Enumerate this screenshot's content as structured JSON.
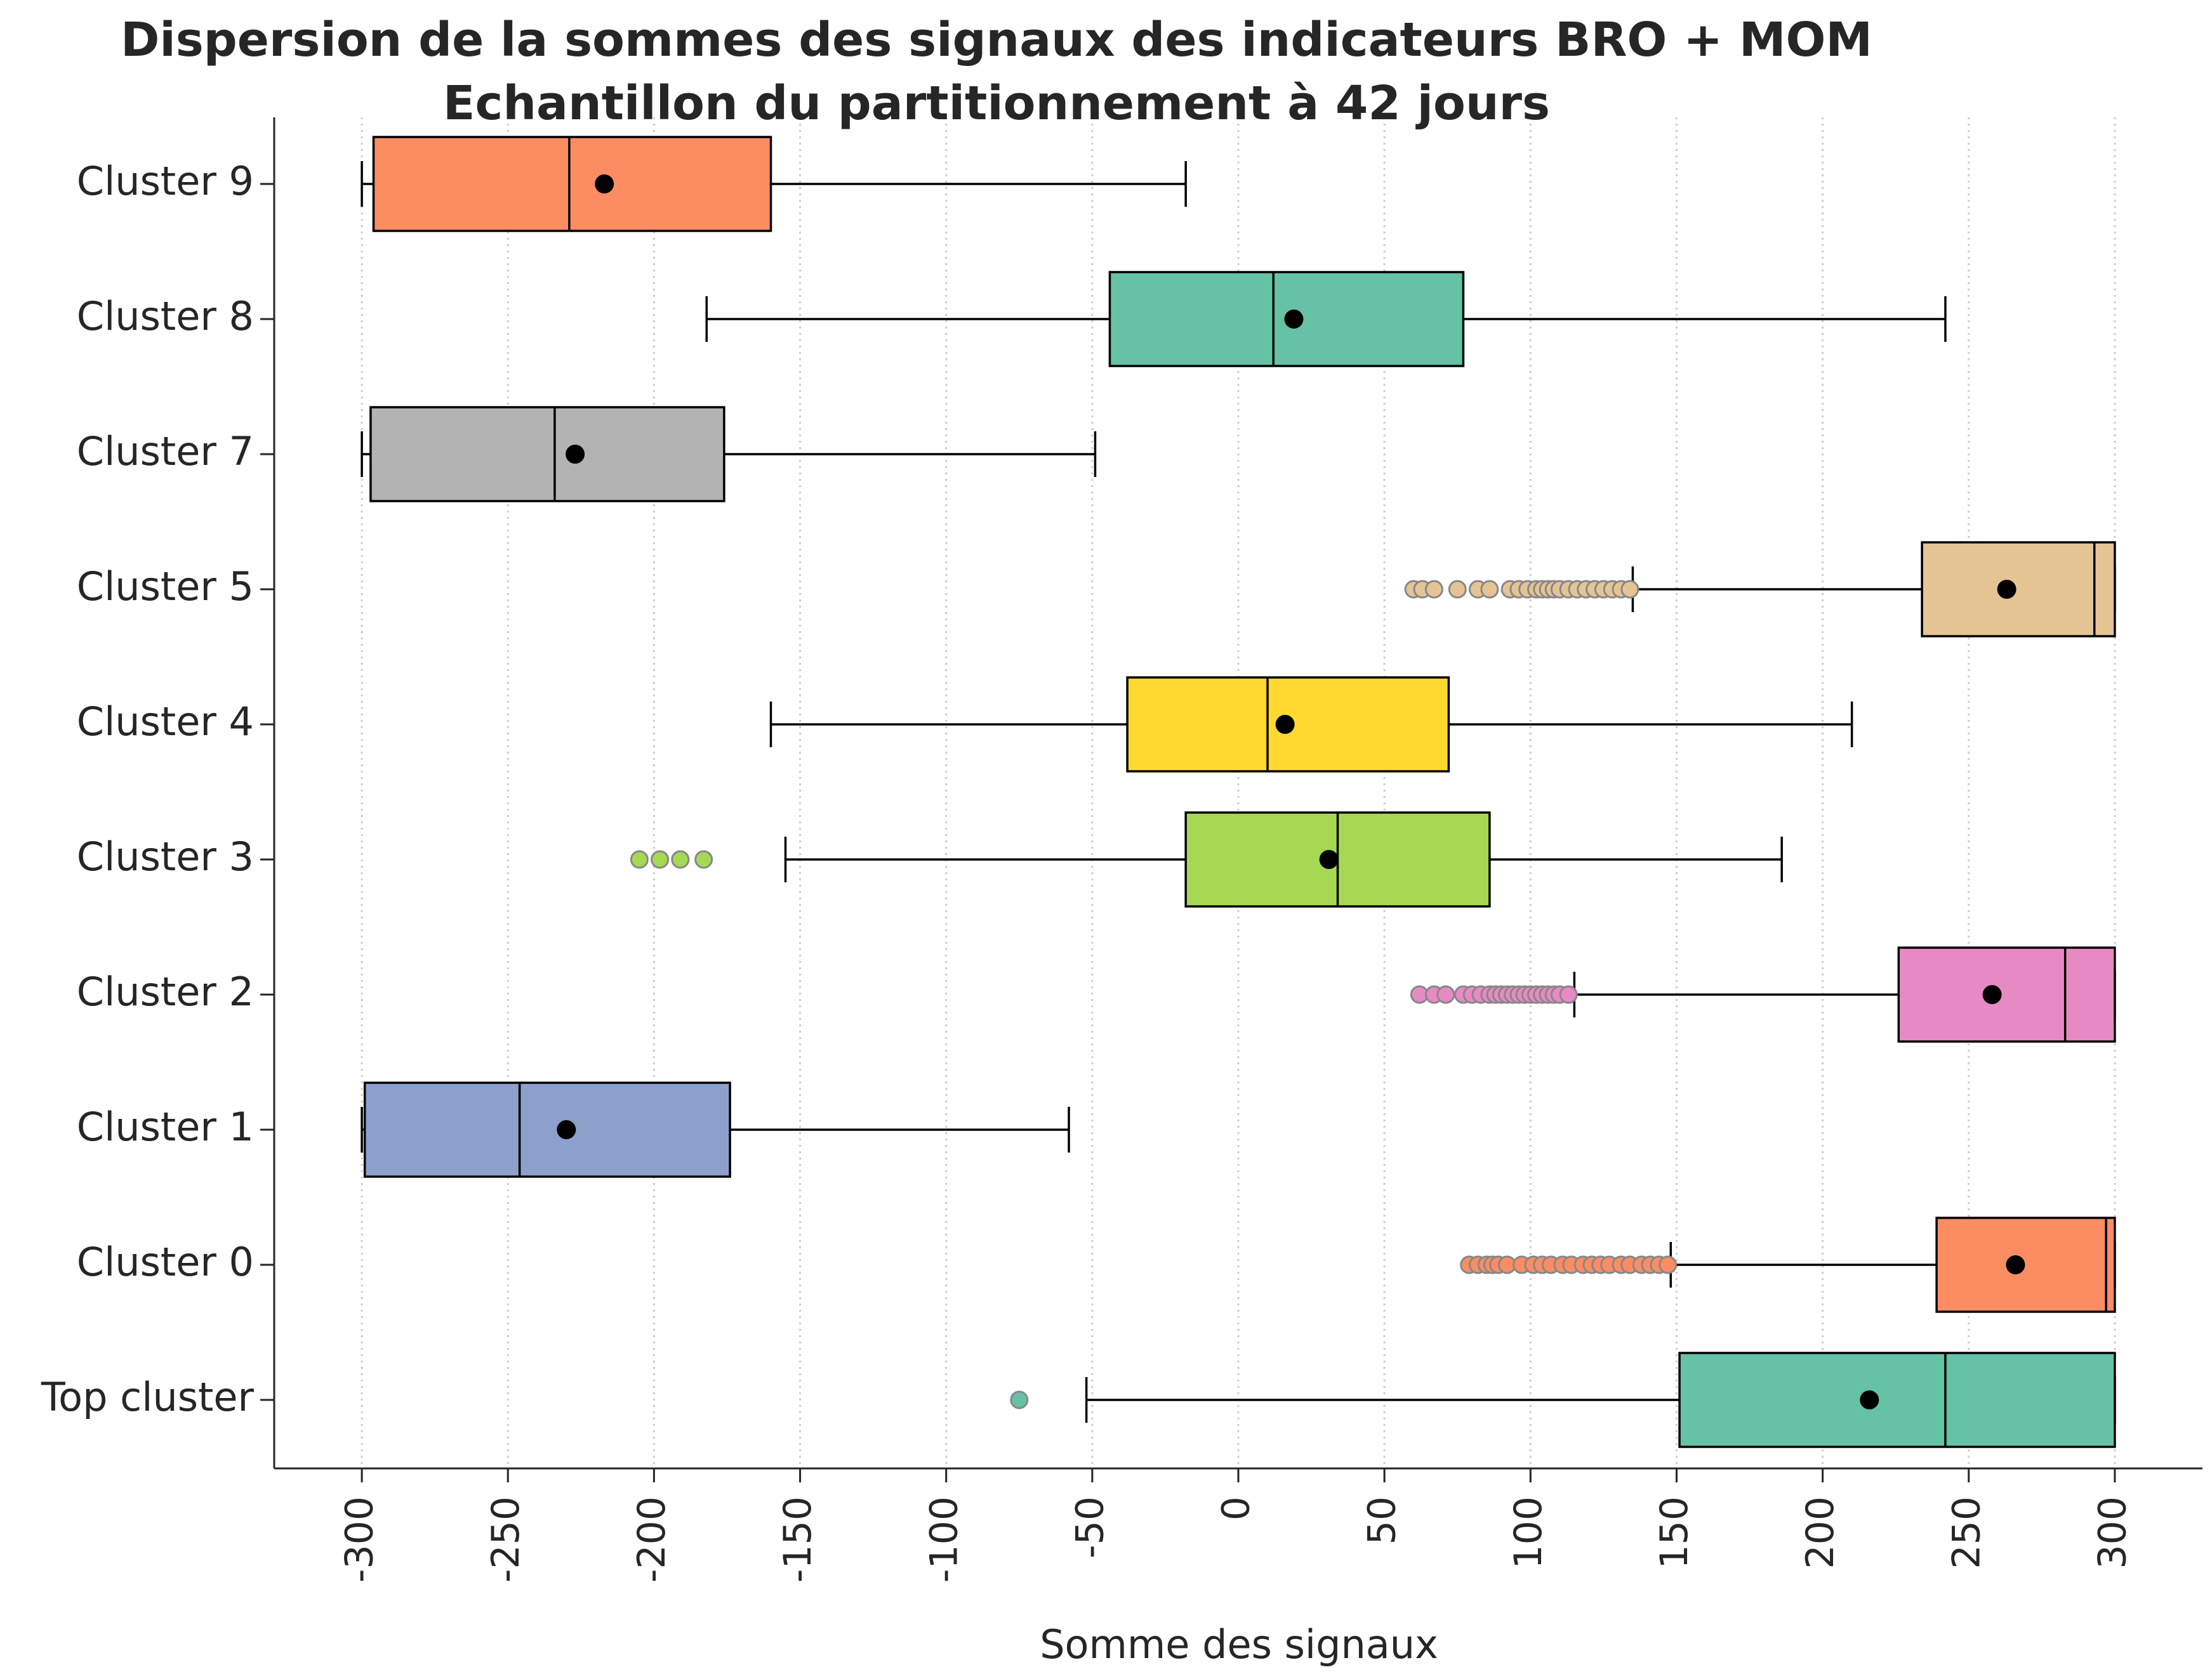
{
  "chart_data": {
    "type": "box",
    "orientation": "horizontal",
    "title_lines": [
      "Dispersion de la sommes des signaux des indicateurs BRO + MOM",
      "Echantillon du partitionnement à 42 jours"
    ],
    "xlabel": "Somme des signaux",
    "ylabel": "",
    "xlim": [
      -330,
      330
    ],
    "xticks": [
      -300,
      -250,
      -200,
      -150,
      -100,
      -50,
      0,
      50,
      100,
      150,
      200,
      250,
      300
    ],
    "grid": "vertical-dotted",
    "mean_marker_color": "#000000",
    "series": [
      {
        "category": "Cluster 9",
        "color": "#fc8d62",
        "whisker_low": -300,
        "q1": -296,
        "median": -229,
        "q3": -160,
        "whisker_high": -18,
        "mean": -217,
        "outliers": []
      },
      {
        "category": "Cluster 8",
        "color": "#66c2a5",
        "whisker_low": -182,
        "q1": -44,
        "median": 12,
        "q3": 77,
        "whisker_high": 242,
        "mean": 19,
        "outliers": []
      },
      {
        "category": "Cluster 7",
        "color": "#b3b3b3",
        "whisker_low": -300,
        "q1": -297,
        "median": -234,
        "q3": -176,
        "whisker_high": -49,
        "mean": -227,
        "outliers": []
      },
      {
        "category": "Cluster 5",
        "color": "#e5c494",
        "whisker_low": 135,
        "q1": 234,
        "median": 293,
        "q3": 300,
        "whisker_high": 300,
        "mean": 263,
        "outliers": [
          60,
          63,
          67,
          75,
          82,
          86,
          93,
          96,
          99,
          102,
          104,
          106,
          108,
          110,
          113,
          116,
          119,
          122,
          125,
          128,
          131,
          134
        ]
      },
      {
        "category": "Cluster 4",
        "color": "#ffd92f",
        "whisker_low": -160,
        "q1": -38,
        "median": 10,
        "q3": 72,
        "whisker_high": 210,
        "mean": 16,
        "outliers": []
      },
      {
        "category": "Cluster 3",
        "color": "#a6d854",
        "whisker_low": -155,
        "q1": -18,
        "median": 34,
        "q3": 86,
        "whisker_high": 186,
        "mean": 31,
        "outliers": [
          -205,
          -198,
          -191,
          -183
        ]
      },
      {
        "category": "Cluster 2",
        "color": "#e78ac3",
        "whisker_low": 115,
        "q1": 226,
        "median": 283,
        "q3": 300,
        "whisker_high": 300,
        "mean": 258,
        "outliers": [
          62,
          67,
          71,
          77,
          80,
          83,
          86,
          88,
          90,
          92,
          94,
          96,
          98,
          100,
          102,
          104,
          106,
          108,
          110,
          113
        ]
      },
      {
        "category": "Cluster 1",
        "color": "#8da0cb",
        "whisker_low": -300,
        "q1": -299,
        "median": -246,
        "q3": -174,
        "whisker_high": -58,
        "mean": -230,
        "outliers": []
      },
      {
        "category": "Cluster 0",
        "color": "#fc8d62",
        "whisker_low": 148,
        "q1": 239,
        "median": 297,
        "q3": 300,
        "whisker_high": 300,
        "mean": 266,
        "outliers": [
          79,
          82,
          85,
          87,
          89,
          92,
          97,
          101,
          104,
          107,
          111,
          114,
          118,
          121,
          124,
          127,
          131,
          134,
          138,
          141,
          144,
          147
        ]
      },
      {
        "category": "Top cluster",
        "color": "#66c2a5",
        "whisker_low": -52,
        "q1": 151,
        "median": 242,
        "q3": 300,
        "whisker_high": 300,
        "mean": 216,
        "outliers": [
          -75
        ]
      }
    ]
  }
}
